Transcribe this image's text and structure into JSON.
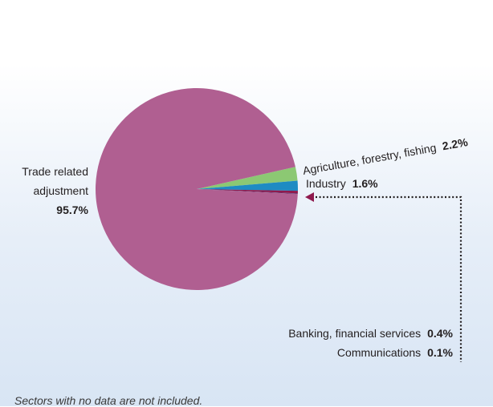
{
  "chart_data": {
    "type": "pie",
    "slices": [
      {
        "label": "Trade related adjustment",
        "label_lines": [
          "Trade related",
          "adjustment"
        ],
        "value_text": "95.7%",
        "value": 95.7,
        "color": "#b05f91"
      },
      {
        "label": "Agriculture, forestry, fishing",
        "value_text": "2.2%",
        "value": 2.2,
        "color": "#8cc873"
      },
      {
        "label": "Industry",
        "value_text": "1.6%",
        "value": 1.6,
        "color": "#1e8bc3"
      },
      {
        "label": "Banking, financial services",
        "value_text": "0.4%",
        "value": 0.4,
        "color": "#8f1a4e"
      },
      {
        "label": "Communications",
        "value_text": "0.1%",
        "value": 0.1,
        "color": "#5a2d6e"
      }
    ]
  },
  "footnote": "Sectors with no data are not included.",
  "colors": {
    "leader": "#231f20"
  }
}
